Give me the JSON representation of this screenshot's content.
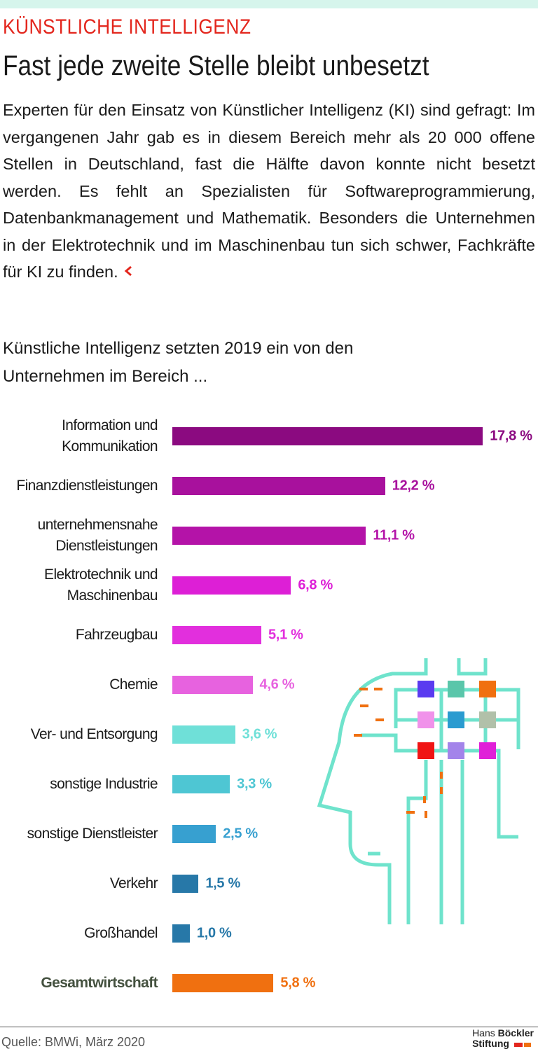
{
  "kicker": "KÜNSTLICHE INTELLIGENZ",
  "headline": "Fast jede zweite Stelle bleibt unbesetzt",
  "intro": "Experten für den Einsatz von Künstlicher Intelligenz (KI) sind gefragt: Im vergangenen Jahr gab es in diesem Bereich mehr als 20 000 offene Stellen in Deutschland, fast die Hälfte davon konnte nicht besetzt werden. Es fehlt an Spezialisten für Softwareprogrammierung, Datenbankmanagement und Mathematik. Besonders die Unternehmen in der Elektrotechnik und im Maschinenbau tun sich schwer, Fachkräfte für KI zu finden.",
  "chart_data": {
    "type": "bar",
    "orientation": "horizontal",
    "title": "Künstliche Intelligenz setzten 2019 ein von den Unternehmen im Bereich ...",
    "categories": [
      "Information und Kommunikation",
      "Finanzdienstleistungen",
      "unternehmensnahe Dienstleistungen",
      "Elektrotechnik und Maschinenbau",
      "Fahrzeugbau",
      "Chemie",
      "Ver- und Entsorgung",
      "sonstige Industrie",
      "sonstige Dienstleister",
      "Verkehr",
      "Großhandel",
      "Gesamtwirtschaft"
    ],
    "values": [
      17.8,
      12.2,
      11.1,
      6.8,
      5.1,
      4.6,
      3.6,
      3.3,
      2.5,
      1.5,
      1.0,
      5.8
    ],
    "value_labels": [
      "17,8 %",
      "12,2 %",
      "11,1 %",
      "6,8 %",
      "5,1 %",
      "4,6 %",
      "3,6 %",
      "3,3 %",
      "2,5 %",
      "1,5 %",
      "1,0 %",
      "5,8 %"
    ],
    "colors": [
      "#8b0a80",
      "#a8119d",
      "#b413a8",
      "#dd1fd6",
      "#e22fdd",
      "#e762df",
      "#6fe0d8",
      "#4ec6d3",
      "#37a0d0",
      "#2778a8",
      "#2778a8",
      "#f07010"
    ]
  },
  "source": "Quelle: BMWi, März 2020",
  "logo": {
    "first": "Hans",
    "second": "Böckler",
    "third": "Stiftung"
  }
}
